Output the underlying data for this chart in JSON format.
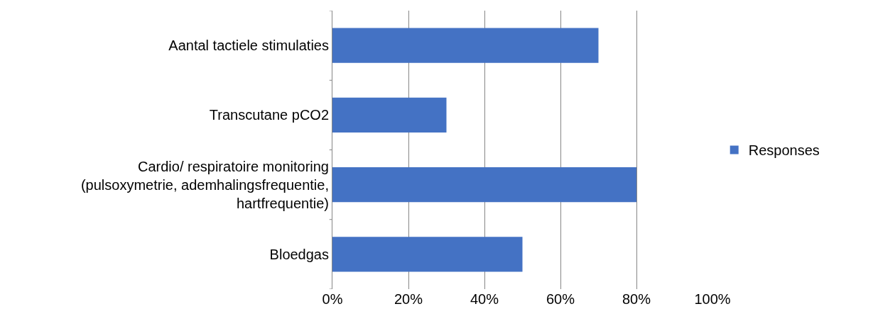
{
  "chart_data": {
    "type": "bar",
    "orientation": "horizontal",
    "categories": [
      "Aantal tactiele stimulaties",
      "Transcutane pCO2",
      "Cardio/ respiratoire monitoring (pulsoxymetrie, ademhalingsfrequentie, hartfrequentie)",
      "Bloedgas"
    ],
    "series": [
      {
        "name": "Responses",
        "color": "#4472c4",
        "values": [
          70,
          30,
          80,
          50
        ]
      }
    ],
    "xlim": [
      0,
      100
    ],
    "xticks": [
      {
        "value": 0,
        "label": "0%"
      },
      {
        "value": 20,
        "label": "20%"
      },
      {
        "value": 40,
        "label": "40%"
      },
      {
        "value": 60,
        "label": "60%"
      },
      {
        "value": 80,
        "label": "80%"
      },
      {
        "value": 100,
        "label": "100%"
      }
    ],
    "grid": "x",
    "legend": "right"
  }
}
